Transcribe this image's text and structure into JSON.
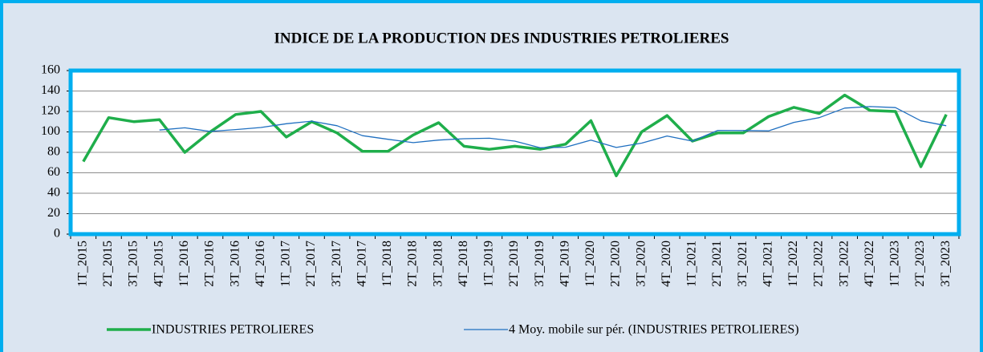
{
  "chart_data": {
    "type": "line",
    "title": "INDICE DE LA PRODUCTION DES INDUSTRIES PETROLIERES",
    "categories": [
      "1T_2015",
      "2T_2015",
      "3T_2015",
      "4T_2015",
      "1T_2016",
      "2T_2016",
      "3T_2016",
      "4T_2016",
      "1T_2017",
      "2T_2017",
      "3T_2017",
      "4T_2017",
      "1T_2018",
      "2T_2018",
      "3T_2018",
      "4T_2018",
      "1T_2019",
      "2T_2019",
      "3T_2019",
      "4T_2019",
      "1T_2020",
      "2T_2020",
      "3T_2020",
      "4T_2020",
      "1T_2021",
      "2T_2021",
      "3T_2021",
      "4T_2021",
      "1T_2022",
      "2T_2022",
      "3T_2022",
      "4T_2022",
      "1T_2023",
      "2T_2023",
      "3T_2023"
    ],
    "series": [
      {
        "name": "INDUSTRIES PETROLIERES",
        "color": "#1fae4b",
        "width": 3.5,
        "values": [
          71,
          114,
          110,
          112,
          80,
          100,
          117,
          120,
          95,
          110,
          99,
          81,
          81,
          97,
          109,
          86,
          83,
          86,
          83,
          88,
          111,
          57,
          100,
          116,
          91,
          99,
          99,
          115,
          124,
          118,
          136,
          121,
          120,
          66,
          117
        ]
      },
      {
        "name": "4 Moy. mobile sur pér. (INDUSTRIES PETROLIERES)",
        "color": "#1f6fc0",
        "width": 1.3,
        "values": [
          null,
          null,
          null,
          101.8,
          104,
          100.5,
          102.3,
          104.3,
          108,
          110.5,
          106,
          96.3,
          92.8,
          89.5,
          92,
          93.3,
          93.8,
          91,
          84.5,
          85,
          92,
          84.8,
          89,
          96,
          91,
          101.5,
          101.3,
          101,
          109.3,
          114,
          123.3,
          124.8,
          123.8,
          110.8,
          106
        ]
      }
    ],
    "ylim": [
      0,
      160
    ],
    "yticks": [
      0,
      20,
      40,
      60,
      80,
      100,
      120,
      140,
      160
    ],
    "grid": true,
    "legend": "bottom"
  }
}
